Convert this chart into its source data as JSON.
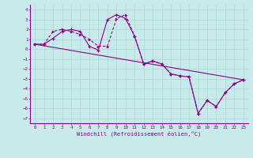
{
  "xlabel": "Windchill (Refroidissement éolien,°C)",
  "bg_color": "#c8eaea",
  "line_color": "#880088",
  "grid_color": "#a8d8d8",
  "xlim": [
    -0.5,
    23.5
  ],
  "ylim": [
    -7.5,
    4.5
  ],
  "xticks": [
    0,
    1,
    2,
    3,
    4,
    5,
    6,
    7,
    8,
    9,
    10,
    11,
    12,
    13,
    14,
    15,
    16,
    17,
    18,
    19,
    20,
    21,
    22,
    23
  ],
  "yticks": [
    -7,
    -6,
    -5,
    -4,
    -3,
    -2,
    -1,
    0,
    1,
    2,
    3,
    4
  ],
  "line1_x": [
    0,
    1,
    2,
    3,
    4,
    5,
    6,
    7,
    8,
    9,
    10,
    11,
    12,
    13,
    14,
    15,
    16,
    17,
    18,
    19,
    20,
    21,
    22,
    23
  ],
  "line1_y": [
    0.5,
    0.5,
    1.1,
    1.8,
    2.0,
    1.8,
    0.3,
    -0.1,
    3.0,
    3.5,
    3.1,
    1.3,
    -1.5,
    -1.2,
    -1.5,
    -2.5,
    -2.7,
    -2.8,
    -6.5,
    -5.2,
    -5.8,
    -4.4,
    -3.5,
    -3.1
  ],
  "line2_x": [
    0,
    1,
    2,
    3,
    4,
    5,
    6,
    7,
    8,
    9,
    10,
    11,
    12,
    13,
    14,
    15,
    16,
    17,
    18,
    19,
    20,
    21,
    22,
    23
  ],
  "line2_y": [
    0.5,
    0.5,
    1.8,
    2.0,
    1.8,
    1.5,
    1.0,
    0.3,
    0.3,
    3.1,
    3.5,
    1.3,
    -1.5,
    -1.2,
    -1.5,
    -2.5,
    -2.7,
    -2.8,
    -6.5,
    -5.2,
    -5.8,
    -4.4,
    -3.5,
    -3.1
  ],
  "line3_x": [
    0,
    23
  ],
  "line3_y": [
    0.5,
    -3.1
  ]
}
